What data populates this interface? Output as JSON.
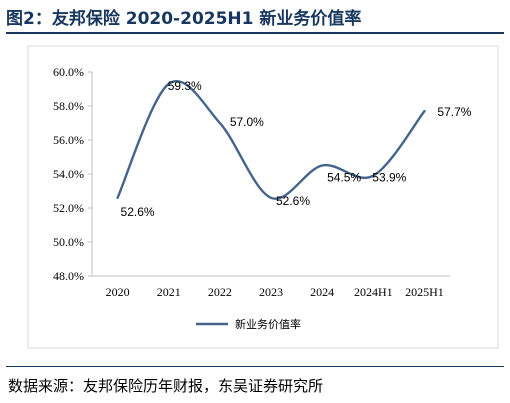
{
  "header": {
    "title": "图2：友邦保险 2020-2025H1 新业务价值率"
  },
  "footer": {
    "source": "数据来源：友邦保险历年财报，东吴证券研究所"
  },
  "chart_data": {
    "type": "line",
    "title": "图2：友邦保险 2020-2025H1 新业务价值率",
    "xlabel": "",
    "ylabel": "",
    "categories": [
      "2020",
      "2021",
      "2022",
      "2023",
      "2024",
      "2024H1",
      "2025H1"
    ],
    "series": [
      {
        "name": "新业务价值率",
        "values": [
          52.6,
          59.3,
          57.0,
          52.6,
          54.5,
          53.9,
          57.7
        ],
        "labels": [
          "52.6%",
          "59.3%",
          "57.0%",
          "52.6%",
          "54.5%",
          "53.9%",
          "57.7%"
        ],
        "color": "#44648c"
      }
    ],
    "ylim": [
      48,
      60
    ],
    "yticks": [
      48,
      50,
      52,
      54,
      56,
      58,
      60
    ],
    "ytick_labels": [
      "48.0%",
      "50.0%",
      "52.0%",
      "54.0%",
      "56.0%",
      "58.0%",
      "60.0%"
    ],
    "grid": false,
    "legend": "bottom",
    "smooth": true
  }
}
